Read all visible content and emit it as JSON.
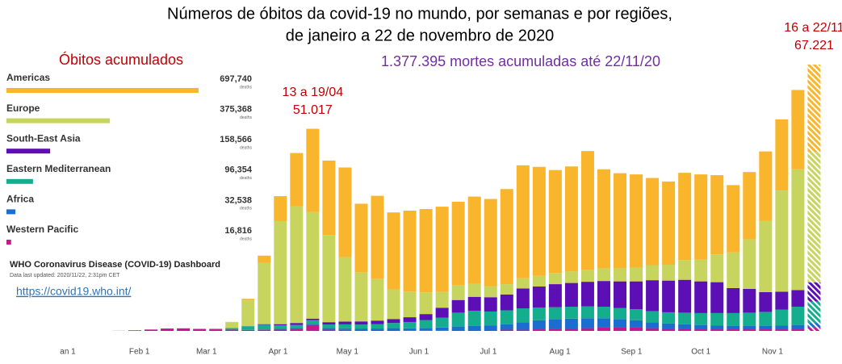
{
  "title": [
    "Números de óbitos da covid-19 no mundo, por semanas e por regiões,",
    "de janeiro a 22 de novembro de 2020"
  ],
  "source": {
    "title": "WHO Coronavirus Disease (COVID-19) Dashboard",
    "updated": "Data last updated: 2020/11/22, 2:31pm CET",
    "link": "https://covid19.who.int/"
  },
  "chart_data": [
    {
      "type": "hbar",
      "title": "Óbitos acumulados",
      "categories": [
        "Americas",
        "Europe",
        "South-East Asia",
        "Eastern Mediterranean",
        "Africa",
        "Western Pacific"
      ],
      "values": [
        697740,
        375368,
        158566,
        96354,
        32538,
        16816
      ],
      "value_labels": [
        "697,740",
        "375,368",
        "158,566",
        "96,354",
        "32,538",
        "16,816"
      ],
      "unit": "deaths",
      "colors": [
        "#f9b52c",
        "#c7d55e",
        "#5b0fb5",
        "#14ae8e",
        "#1c6dd0",
        "#c2198d"
      ]
    },
    {
      "type": "stacked_bar",
      "annotation": "1.377.395 mortes acumuladas até 22/11/20",
      "x": [
        "2020-01-13",
        "2020-01-20",
        "2020-01-27",
        "2020-02-03",
        "2020-02-10",
        "2020-02-17",
        "2020-02-24",
        "2020-03-02",
        "2020-03-09",
        "2020-03-16",
        "2020-03-23",
        "2020-03-30",
        "2020-04-06",
        "2020-04-13",
        "2020-04-20",
        "2020-04-27",
        "2020-05-04",
        "2020-05-11",
        "2020-05-18",
        "2020-05-25",
        "2020-06-01",
        "2020-06-08",
        "2020-06-15",
        "2020-06-22",
        "2020-06-29",
        "2020-07-06",
        "2020-07-13",
        "2020-07-20",
        "2020-07-27",
        "2020-08-03",
        "2020-08-10",
        "2020-08-17",
        "2020-08-24",
        "2020-08-31",
        "2020-09-07",
        "2020-09-14",
        "2020-09-21",
        "2020-09-28",
        "2020-10-05",
        "2020-10-12",
        "2020-10-19",
        "2020-10-26",
        "2020-11-02",
        "2020-11-09",
        "2020-11-16"
      ],
      "series": [
        {
          "name": "Western Pacific",
          "color": "#c2198d",
          "values": [
            0,
            30,
            150,
            350,
            600,
            650,
            500,
            400,
            300,
            250,
            300,
            300,
            400,
            1500,
            300,
            250,
            200,
            200,
            200,
            150,
            150,
            150,
            200,
            200,
            200,
            300,
            300,
            400,
            500,
            600,
            700,
            900,
            1000,
            900,
            700,
            600,
            500,
            400,
            400,
            400,
            400,
            400,
            400,
            400,
            821
          ]
        },
        {
          "name": "Africa",
          "color": "#1c6dd0",
          "values": [
            0,
            0,
            0,
            0,
            0,
            0,
            0,
            0,
            5,
            20,
            50,
            200,
            300,
            300,
            400,
            400,
            400,
            400,
            500,
            500,
            600,
            700,
            900,
            1100,
            1200,
            1400,
            1900,
            2300,
            2500,
            2500,
            2500,
            2300,
            2000,
            1800,
            1500,
            1300,
            1200,
            1100,
            1000,
            900,
            900,
            900,
            1000,
            1100,
            1200
          ]
        },
        {
          "name": "Eastern Mediterranean",
          "color": "#14ae8e",
          "values": [
            0,
            0,
            0,
            0,
            0,
            0,
            20,
            100,
            400,
            900,
            1200,
            900,
            800,
            900,
            900,
            1000,
            1000,
            1100,
            1300,
            1600,
            2000,
            2500,
            3500,
            3800,
            3500,
            3500,
            3500,
            3200,
            3000,
            3000,
            3000,
            2900,
            2800,
            2800,
            2800,
            2800,
            2900,
            3000,
            3100,
            3200,
            3300,
            3500,
            4000,
            4600,
            5400
          ]
        },
        {
          "name": "South-East Asia",
          "color": "#5b0fb5",
          "values": [
            0,
            0,
            0,
            0,
            0,
            0,
            0,
            0,
            10,
            30,
            150,
            300,
            500,
            400,
            600,
            700,
            800,
            900,
            1000,
            1200,
            1500,
            2500,
            3200,
            3500,
            3600,
            4000,
            5000,
            5300,
            5800,
            6000,
            6200,
            6500,
            6700,
            7000,
            7800,
            8000,
            8300,
            8000,
            7800,
            6300,
            6000,
            5000,
            4500,
            4200,
            4800
          ]
        },
        {
          "name": "Europe",
          "color": "#c7d55e",
          "values": [
            0,
            0,
            0,
            0,
            0,
            0,
            10,
            100,
            1500,
            6500,
            15500,
            26000,
            29400,
            26917,
            22000,
            16300,
            12400,
            10500,
            7500,
            6500,
            5500,
            4000,
            3800,
            3300,
            2800,
            2600,
            2600,
            2700,
            2800,
            2900,
            3000,
            3200,
            3300,
            3500,
            3800,
            4000,
            5000,
            5500,
            7000,
            9000,
            12500,
            18000,
            25500,
            30500,
            33000
          ]
        },
        {
          "name": "Americas",
          "color": "#f9b52c",
          "values": [
            0,
            0,
            0,
            0,
            0,
            0,
            0,
            10,
            50,
            400,
            1800,
            6300,
            13500,
            21000,
            18800,
            22600,
            17300,
            21000,
            19400,
            20400,
            21000,
            21500,
            21000,
            22000,
            22000,
            24000,
            28500,
            27500,
            26000,
            26500,
            30000,
            25000,
            24000,
            23500,
            22000,
            21000,
            22000,
            21500,
            20000,
            17000,
            17000,
            17500,
            18000,
            20000,
            22000
          ]
        }
      ],
      "xticks": [
        {
          "value": "2020-01-01",
          "label": "an 1"
        },
        {
          "value": "2020-02-01",
          "label": "Feb 1"
        },
        {
          "value": "2020-03-01",
          "label": "Mar 1"
        },
        {
          "value": "2020-04-01",
          "label": "Apr 1"
        },
        {
          "value": "2020-05-01",
          "label": "May 1"
        },
        {
          "value": "2020-06-01",
          "label": "Jun 1"
        },
        {
          "value": "2020-07-01",
          "label": "Jul 1"
        },
        {
          "value": "2020-08-01",
          "label": "Aug 1"
        },
        {
          "value": "2020-09-01",
          "label": "Sep 1"
        },
        {
          "value": "2020-10-01",
          "label": "Oct 1"
        },
        {
          "value": "2020-11-01",
          "label": "Nov 1"
        }
      ],
      "annotations": [
        {
          "x": "2020-04-13",
          "label": "13 a 19/04",
          "value": 51017,
          "value_label": "51.017"
        },
        {
          "x": "2020-11-16",
          "label": "16 a 22/11",
          "value": 67221,
          "value_label": "67.221"
        }
      ],
      "hatch_last": true
    }
  ]
}
